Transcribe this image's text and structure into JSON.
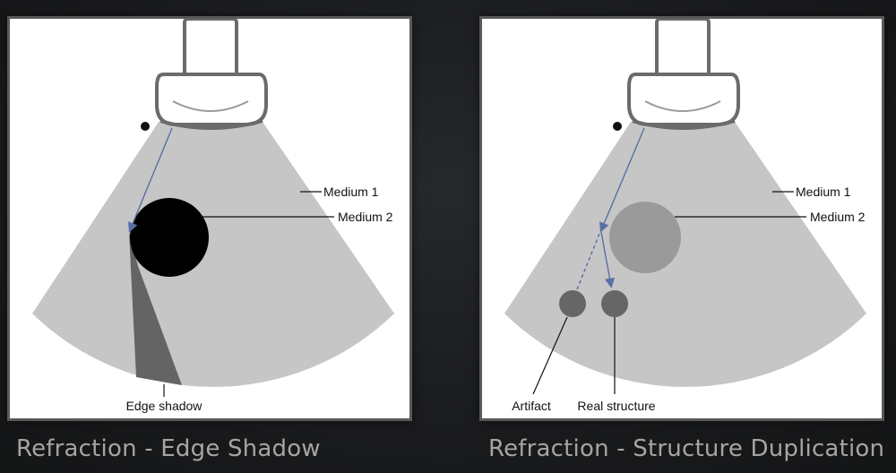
{
  "colors": {
    "background": "#1b1c1e",
    "panel": "#ffffff",
    "panel_border": "#58595b",
    "medium1": "#c6c6c6",
    "medium2_dense": "#000000",
    "medium2_light": "#9a9a9a",
    "shadow": "#646464",
    "structure": "#666666",
    "beam": "#5a6fa6",
    "probe": "#6b6b6b",
    "caption": "#a7a59f"
  },
  "panels": [
    {
      "caption": "Refraction - Edge Shadow",
      "labels": {
        "medium1": "Medium 1",
        "medium2": "Medium 2",
        "edge_shadow": "Edge shadow"
      }
    },
    {
      "caption": "Refraction - Structure Duplication",
      "labels": {
        "medium1": "Medium 1",
        "medium2": "Medium 2",
        "artifact": "Artifact",
        "real_structure": "Real structure"
      }
    }
  ]
}
